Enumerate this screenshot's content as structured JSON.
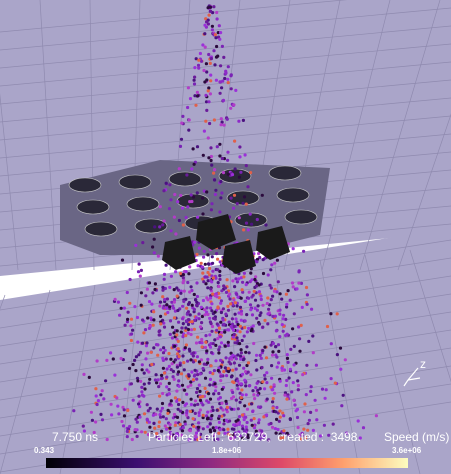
{
  "time_label": "7.750 ns",
  "status": "Particles Left : 632729,  created :  3498.",
  "colorbar": {
    "title": "Speed (m/s)",
    "min_label": "0.343",
    "mid_label": "1.8e+06",
    "max_label": "3.6e+06"
  },
  "axis_label": "z"
}
